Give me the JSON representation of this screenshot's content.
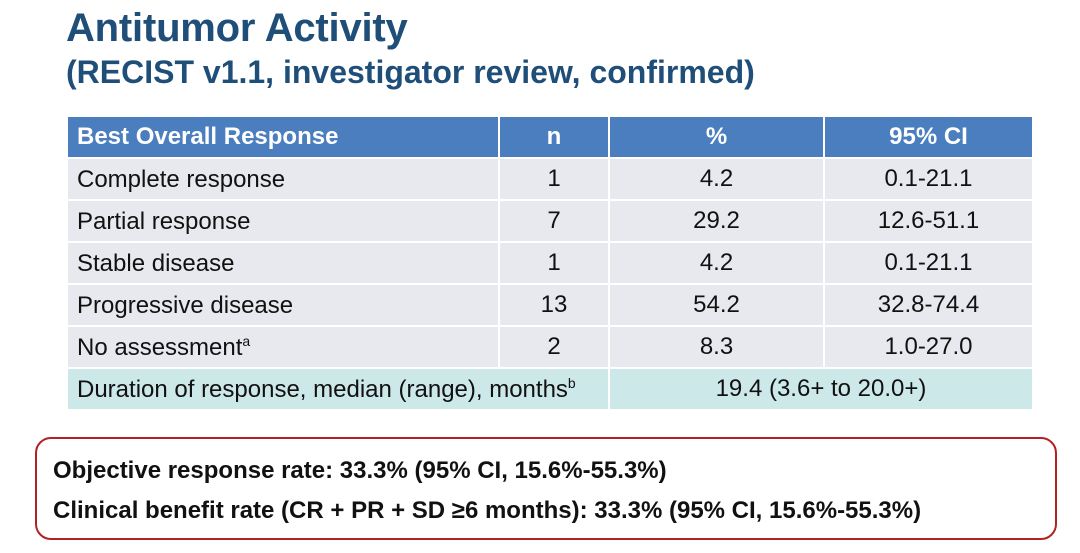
{
  "title": "Antitumor Activity",
  "subtitle": "(RECIST v1.1, investigator review, confirmed)",
  "table": {
    "headers": [
      "Best Overall Response",
      "n",
      "%",
      "95% CI"
    ],
    "rows": [
      {
        "label": "Complete response",
        "sup": "",
        "n": "1",
        "pct": "4.2",
        "ci": "0.1-21.1"
      },
      {
        "label": "Partial response",
        "sup": "",
        "n": "7",
        "pct": "29.2",
        "ci": "12.6-51.1"
      },
      {
        "label": "Stable disease",
        "sup": "",
        "n": "1",
        "pct": "4.2",
        "ci": "0.1-21.1"
      },
      {
        "label": "Progressive disease",
        "sup": "",
        "n": "13",
        "pct": "54.2",
        "ci": "32.8-74.4"
      },
      {
        "label": "No assessment",
        "sup": "a",
        "n": "2",
        "pct": "8.3",
        "ci": "1.0-27.0"
      }
    ],
    "duration": {
      "label": "Duration of response, median (range), months",
      "sup": "b",
      "value": "19.4 (3.6+ to 20.0+)"
    }
  },
  "summary": {
    "orr": "Objective response rate: 33.3% (95% CI, 15.6%-55.3%)",
    "cbr": "Clinical benefit rate (CR + PR + SD ≥6 months): 33.3% (95% CI, 15.6%-55.3%)"
  },
  "colors": {
    "title": "#1f4e79",
    "header_bg": "#4a7ebf",
    "row_bg": "#e8e9ee",
    "duration_bg": "#cde8e9",
    "box_border": "#b22222"
  }
}
